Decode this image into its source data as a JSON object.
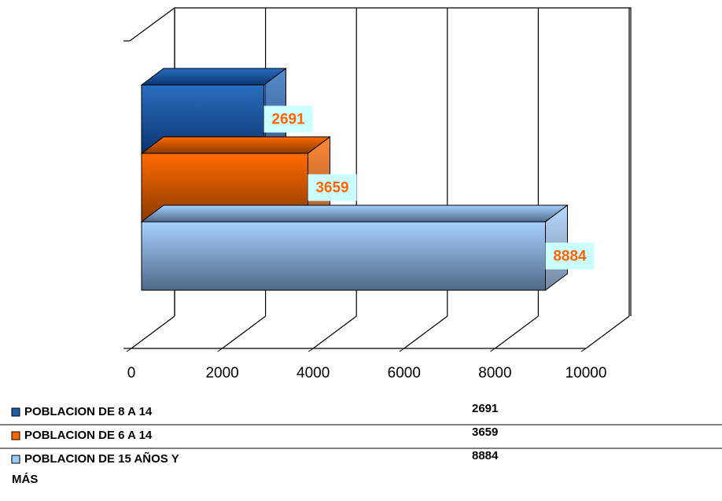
{
  "chart_data": {
    "type": "bar",
    "series": [
      {
        "name": "POBLACION DE 8 A 14",
        "color": "#1f5fa8",
        "values": [
          2691
        ]
      },
      {
        "name": "POBLACION DE 6 A 14",
        "color": "#ff6600",
        "values": [
          3659
        ]
      },
      {
        "name": "POBLACION DE 15 AÑOS Y MÁS",
        "color": "#99ccff",
        "values": [
          8884
        ]
      }
    ],
    "xlim": [
      0,
      10000
    ],
    "xticks": [
      0,
      2000,
      4000,
      6000,
      8000,
      10000
    ],
    "grid": true
  }
}
